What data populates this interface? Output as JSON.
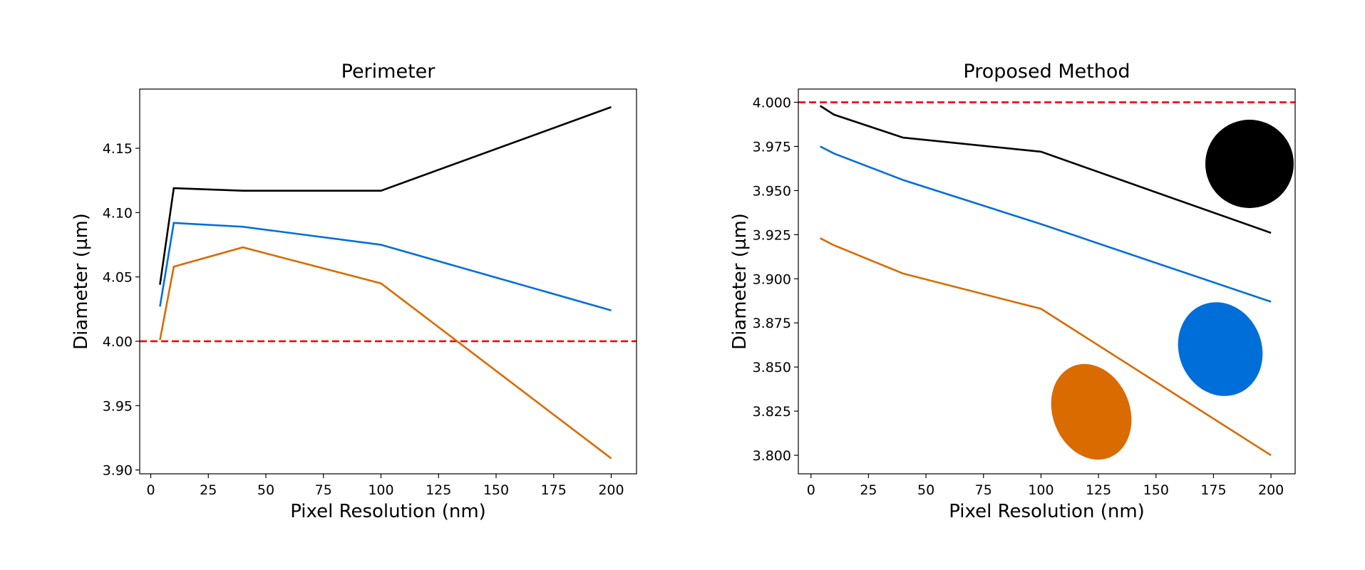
{
  "chart_data": [
    {
      "type": "line",
      "title": "Perimeter",
      "xlabel": "Pixel Resolution (nm)",
      "ylabel": "Diameter (µm)",
      "xlim": [
        -4.8,
        211
      ],
      "ylim": [
        3.897,
        4.196
      ],
      "xticks": [
        0,
        25,
        50,
        75,
        100,
        125,
        150,
        175,
        200
      ],
      "xtick_labels": [
        "0",
        "25",
        "50",
        "75",
        "100",
        "125",
        "150",
        "175",
        "200"
      ],
      "yticks": [
        3.9,
        3.95,
        4.0,
        4.05,
        4.1,
        4.15
      ],
      "ytick_labels": [
        "3.90",
        "3.95",
        "4.00",
        "4.05",
        "4.10",
        "4.15"
      ],
      "x": [
        4,
        10,
        40,
        100,
        200
      ],
      "series": [
        {
          "name": "black",
          "color": "#000000",
          "values": [
            4.044,
            4.119,
            4.117,
            4.117,
            4.182
          ]
        },
        {
          "name": "blue",
          "color": "#006ED9",
          "values": [
            4.027,
            4.092,
            4.089,
            4.075,
            4.024
          ]
        },
        {
          "name": "orange",
          "color": "#D96B00",
          "values": [
            4.001,
            4.058,
            4.073,
            4.045,
            3.909
          ]
        }
      ],
      "reference_line": {
        "y": 4.0,
        "color": "#FF0000",
        "style": "dashed"
      },
      "grid": false
    },
    {
      "type": "line",
      "title": "Proposed Method",
      "xlabel": "Pixel Resolution (nm)",
      "ylabel": "Diameter (µm)",
      "xlim": [
        -5.5,
        210.5
      ],
      "ylim": [
        3.7895,
        4.0075
      ],
      "xticks": [
        0,
        25,
        50,
        75,
        100,
        125,
        150,
        175,
        200
      ],
      "xtick_labels": [
        "0",
        "25",
        "50",
        "75",
        "100",
        "125",
        "150",
        "175",
        "200"
      ],
      "yticks": [
        3.8,
        3.825,
        3.85,
        3.875,
        3.9,
        3.925,
        3.95,
        3.975,
        4.0
      ],
      "ytick_labels": [
        "3.800",
        "3.825",
        "3.850",
        "3.875",
        "3.900",
        "3.925",
        "3.950",
        "3.975",
        "4.000"
      ],
      "x": [
        4,
        10,
        40,
        100,
        200
      ],
      "series": [
        {
          "name": "black",
          "color": "#000000",
          "values": [
            3.998,
            3.993,
            3.98,
            3.972,
            3.926
          ]
        },
        {
          "name": "blue",
          "color": "#006ED9",
          "values": [
            3.975,
            3.971,
            3.956,
            3.931,
            3.887
          ]
        },
        {
          "name": "orange",
          "color": "#D96B00",
          "values": [
            3.923,
            3.919,
            3.903,
            3.883,
            3.8
          ]
        }
      ],
      "reference_line": {
        "y": 4.0,
        "color": "#FF0000",
        "style": "dashed"
      },
      "shape_legend": [
        {
          "name": "circle",
          "color": "#000000"
        },
        {
          "name": "blue-ellipse",
          "color": "#006ED9"
        },
        {
          "name": "orange-ellipse",
          "color": "#D96B00"
        }
      ],
      "grid": false
    }
  ]
}
